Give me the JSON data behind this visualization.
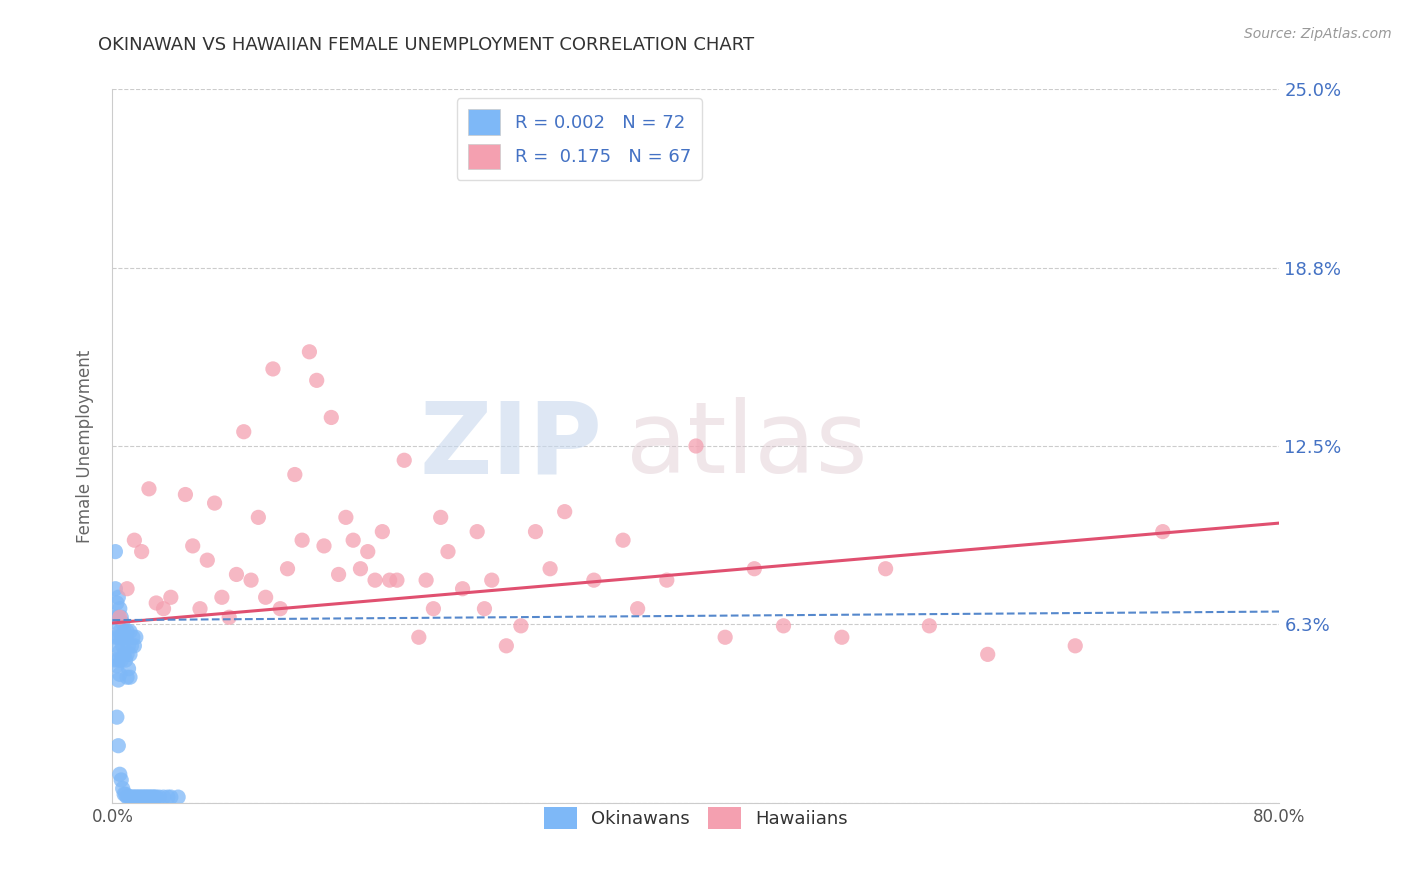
{
  "title": "OKINAWAN VS HAWAIIAN FEMALE UNEMPLOYMENT CORRELATION CHART",
  "source_text": "Source: ZipAtlas.com",
  "ylabel": "Female Unemployment",
  "xlim": [
    0.0,
    0.8
  ],
  "ylim": [
    0.0,
    0.25
  ],
  "x_ticks": [
    0.0,
    0.1,
    0.2,
    0.3,
    0.4,
    0.5,
    0.6,
    0.7,
    0.8
  ],
  "x_tick_labels": [
    "0.0%",
    "",
    "",
    "",
    "",
    "",
    "",
    "",
    "80.0%"
  ],
  "y_ticks": [
    0.0,
    0.0625,
    0.125,
    0.1875,
    0.25
  ],
  "y_tick_labels_right": [
    "",
    "6.3%",
    "12.5%",
    "18.8%",
    "25.0%"
  ],
  "okinawan_color": "#7EB8F7",
  "hawaiian_color": "#F4A0B0",
  "okinawan_line_color": "#5588CC",
  "hawaiian_line_color": "#E05070",
  "legend_R_okinawan": "0.002",
  "legend_N_okinawan": "72",
  "legend_R_hawaiian": "0.175",
  "legend_N_hawaiian": "67",
  "watermark_zip": "ZIP",
  "watermark_atlas": "atlas",
  "okinawan_x": [
    0.002,
    0.002,
    0.002,
    0.002,
    0.002,
    0.003,
    0.003,
    0.003,
    0.003,
    0.003,
    0.004,
    0.004,
    0.004,
    0.004,
    0.004,
    0.004,
    0.005,
    0.005,
    0.005,
    0.005,
    0.005,
    0.006,
    0.006,
    0.006,
    0.006,
    0.007,
    0.007,
    0.007,
    0.008,
    0.008,
    0.008,
    0.009,
    0.009,
    0.009,
    0.01,
    0.01,
    0.01,
    0.01,
    0.011,
    0.011,
    0.011,
    0.012,
    0.012,
    0.012,
    0.012,
    0.013,
    0.013,
    0.014,
    0.014,
    0.015,
    0.015,
    0.016,
    0.016,
    0.017,
    0.018,
    0.019,
    0.02,
    0.021,
    0.022,
    0.023,
    0.024,
    0.025,
    0.026,
    0.027,
    0.028,
    0.029,
    0.03,
    0.032,
    0.035,
    0.038,
    0.04,
    0.045
  ],
  "okinawan_y": [
    0.088,
    0.075,
    0.065,
    0.058,
    0.05,
    0.07,
    0.063,
    0.055,
    0.048,
    0.03,
    0.072,
    0.065,
    0.058,
    0.05,
    0.043,
    0.02,
    0.068,
    0.06,
    0.053,
    0.045,
    0.01,
    0.065,
    0.058,
    0.05,
    0.008,
    0.063,
    0.055,
    0.005,
    0.06,
    0.052,
    0.003,
    0.058,
    0.05,
    0.003,
    0.06,
    0.052,
    0.044,
    0.002,
    0.055,
    0.047,
    0.002,
    0.06,
    0.052,
    0.044,
    0.002,
    0.055,
    0.002,
    0.058,
    0.002,
    0.055,
    0.002,
    0.058,
    0.002,
    0.002,
    0.002,
    0.002,
    0.002,
    0.002,
    0.002,
    0.002,
    0.002,
    0.002,
    0.002,
    0.002,
    0.002,
    0.002,
    0.002,
    0.002,
    0.002,
    0.002,
    0.002,
    0.002
  ],
  "hawaiian_x": [
    0.005,
    0.01,
    0.015,
    0.02,
    0.025,
    0.03,
    0.035,
    0.04,
    0.05,
    0.055,
    0.06,
    0.065,
    0.07,
    0.075,
    0.08,
    0.085,
    0.09,
    0.095,
    0.1,
    0.105,
    0.11,
    0.115,
    0.12,
    0.125,
    0.13,
    0.135,
    0.14,
    0.145,
    0.15,
    0.155,
    0.16,
    0.165,
    0.17,
    0.175,
    0.18,
    0.185,
    0.19,
    0.195,
    0.2,
    0.21,
    0.215,
    0.22,
    0.225,
    0.23,
    0.24,
    0.25,
    0.255,
    0.26,
    0.27,
    0.28,
    0.29,
    0.3,
    0.31,
    0.33,
    0.35,
    0.36,
    0.38,
    0.4,
    0.42,
    0.44,
    0.46,
    0.5,
    0.53,
    0.56,
    0.6,
    0.66,
    0.72
  ],
  "hawaiian_y": [
    0.065,
    0.075,
    0.092,
    0.088,
    0.11,
    0.07,
    0.068,
    0.072,
    0.108,
    0.09,
    0.068,
    0.085,
    0.105,
    0.072,
    0.065,
    0.08,
    0.13,
    0.078,
    0.1,
    0.072,
    0.152,
    0.068,
    0.082,
    0.115,
    0.092,
    0.158,
    0.148,
    0.09,
    0.135,
    0.08,
    0.1,
    0.092,
    0.082,
    0.088,
    0.078,
    0.095,
    0.078,
    0.078,
    0.12,
    0.058,
    0.078,
    0.068,
    0.1,
    0.088,
    0.075,
    0.095,
    0.068,
    0.078,
    0.055,
    0.062,
    0.095,
    0.082,
    0.102,
    0.078,
    0.092,
    0.068,
    0.078,
    0.125,
    0.058,
    0.082,
    0.062,
    0.058,
    0.082,
    0.062,
    0.052,
    0.055,
    0.095
  ]
}
